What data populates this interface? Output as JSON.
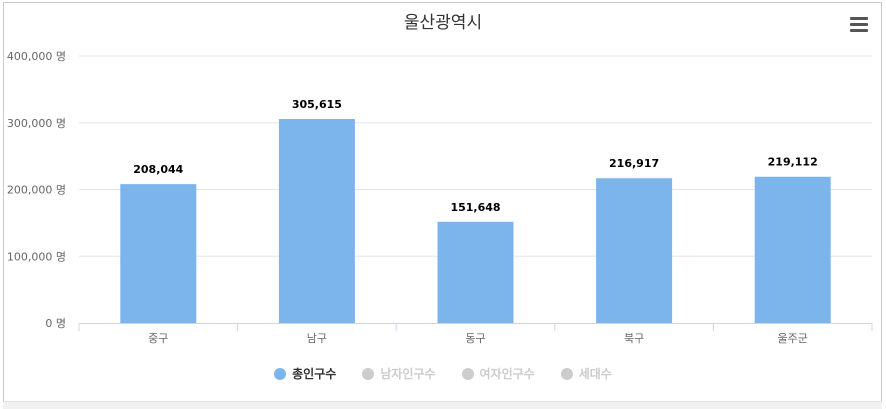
{
  "chart_data": {
    "type": "bar",
    "title": "울산광역시",
    "categories": [
      "중구",
      "남구",
      "동구",
      "북구",
      "울주군"
    ],
    "series": [
      {
        "name": "총인구수",
        "values": [
          208044,
          305615,
          151648,
          216917,
          219112
        ],
        "visible": true
      }
    ],
    "value_labels": [
      "208,044",
      "305,615",
      "151,648",
      "216,917",
      "219,112"
    ],
    "ylim": [
      0,
      400000
    ],
    "yticks": [
      {
        "value": 0,
        "label": "0 명"
      },
      {
        "value": 100000,
        "label": "100,000 명"
      },
      {
        "value": 200000,
        "label": "200,000 명"
      },
      {
        "value": 300000,
        "label": "300,000 명"
      },
      {
        "value": 400000,
        "label": "400,000 명"
      }
    ],
    "grid": true,
    "legend_placement": "bottom-center"
  },
  "legend": [
    {
      "label": "총인구수",
      "active": true
    },
    {
      "label": "남자인구수",
      "active": false
    },
    {
      "label": "여자인구수",
      "active": false
    },
    {
      "label": "세대수",
      "active": false
    }
  ],
  "colors": {
    "bar": "#7cb5ec",
    "inactive": "#cccccc",
    "grid": "#e6e6e6",
    "axis": "#ccd6eb"
  },
  "icons": {
    "menu": "hamburger-menu-icon"
  }
}
